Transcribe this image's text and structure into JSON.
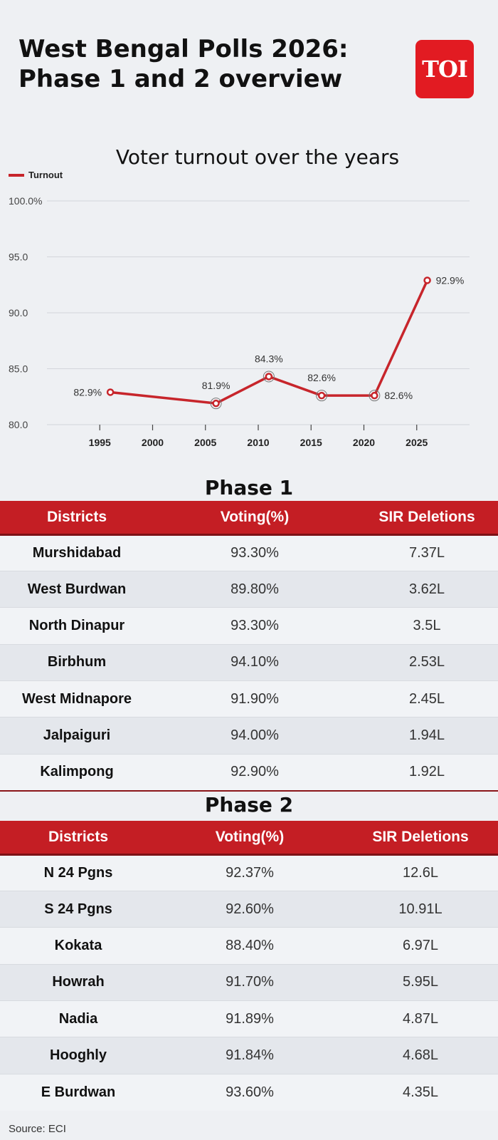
{
  "header": {
    "title_line1": "West Bengal Polls 2026:",
    "title_line2": "Phase 1 and 2 overview",
    "logo_text": "TOI",
    "brand_color": "#e21b22"
  },
  "chart_data": {
    "type": "line",
    "title": "Voter turnout over the years",
    "xlabel": "",
    "ylabel": "",
    "x_ticks": [
      "1995",
      "2000",
      "2005",
      "2010",
      "2015",
      "2020",
      "2025"
    ],
    "y_ticks": [
      "100.0%",
      "95.0",
      "90.0",
      "85.0",
      "80.0"
    ],
    "xlim": [
      1990,
      2030
    ],
    "ylim": [
      80,
      100
    ],
    "grid": true,
    "legend_position": "top-left",
    "series": [
      {
        "name": "Turnout",
        "color": "#c7252b",
        "x": [
          1996,
          2006,
          2011,
          2016,
          2021,
          2026
        ],
        "values": [
          82.9,
          81.9,
          84.3,
          82.6,
          82.6,
          92.9
        ],
        "labels": [
          "82.9%",
          "81.9%",
          "84.3%",
          "82.6%",
          "82.6%",
          "92.9%"
        ]
      }
    ]
  },
  "phase1": {
    "title": "Phase 1",
    "headers": [
      "Districts",
      "Voting(%)",
      "SIR Deletions"
    ],
    "rows": [
      [
        "Murshidabad",
        "93.30%",
        "7.37L"
      ],
      [
        "West Burdwan",
        "89.80%",
        "3.62L"
      ],
      [
        "North Dinapur",
        "93.30%",
        "3.5L"
      ],
      [
        "Birbhum",
        "94.10%",
        "2.53L"
      ],
      [
        "West Midnapore",
        "91.90%",
        "2.45L"
      ],
      [
        "Jalpaiguri",
        "94.00%",
        "1.94L"
      ],
      [
        "Kalimpong",
        "92.90%",
        "1.92L"
      ]
    ]
  },
  "phase2": {
    "title": "Phase 2",
    "headers": [
      "Districts",
      "Voting(%)",
      "SIR Deletions"
    ],
    "rows": [
      [
        "N 24 Pgns",
        "92.37%",
        "12.6L"
      ],
      [
        "S 24 Pgns",
        "92.60%",
        "10.91L"
      ],
      [
        "Kokata",
        "88.40%",
        "6.97L"
      ],
      [
        "Howrah",
        "91.70%",
        "5.95L"
      ],
      [
        "Nadia",
        "91.89%",
        "4.87L"
      ],
      [
        "Hooghly",
        "91.84%",
        "4.68L"
      ],
      [
        "E Burdwan",
        "93.60%",
        "4.35L"
      ]
    ]
  },
  "footer": {
    "source": "Source: ECI"
  }
}
